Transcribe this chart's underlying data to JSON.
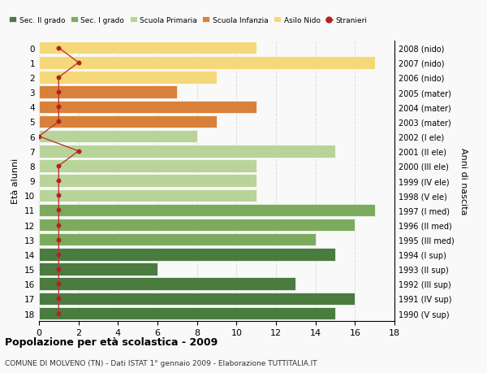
{
  "ages": [
    18,
    17,
    16,
    15,
    14,
    13,
    12,
    11,
    10,
    9,
    8,
    7,
    6,
    5,
    4,
    3,
    2,
    1,
    0
  ],
  "anni_nascita": [
    "1990 (V sup)",
    "1991 (IV sup)",
    "1992 (III sup)",
    "1993 (II sup)",
    "1994 (I sup)",
    "1995 (III med)",
    "1996 (II med)",
    "1997 (I med)",
    "1998 (V ele)",
    "1999 (IV ele)",
    "2000 (III ele)",
    "2001 (II ele)",
    "2002 (I ele)",
    "2003 (mater)",
    "2004 (mater)",
    "2005 (mater)",
    "2006 (nido)",
    "2007 (nido)",
    "2008 (nido)"
  ],
  "bar_values": [
    15,
    16,
    13,
    6,
    15,
    14,
    16,
    17,
    11,
    11,
    11,
    15,
    8,
    9,
    11,
    7,
    9,
    17,
    11
  ],
  "bar_colors": [
    "#4a7c40",
    "#4a7c40",
    "#4a7c40",
    "#4a7c40",
    "#4a7c40",
    "#7dab5e",
    "#7dab5e",
    "#7dab5e",
    "#b8d49a",
    "#b8d49a",
    "#b8d49a",
    "#b8d49a",
    "#b8d49a",
    "#d9813a",
    "#d9813a",
    "#d9813a",
    "#f5d87a",
    "#f5d87a",
    "#f5d87a"
  ],
  "stranieri_values": [
    1,
    1,
    1,
    1,
    1,
    1,
    1,
    1,
    1,
    1,
    1,
    2,
    0,
    1,
    1,
    1,
    1,
    2,
    1
  ],
  "legend_labels": [
    "Sec. II grado",
    "Sec. I grado",
    "Scuola Primaria",
    "Scuola Infanzia",
    "Asilo Nido",
    "Stranieri"
  ],
  "legend_colors": [
    "#4a7c40",
    "#7dab5e",
    "#b8d49a",
    "#d9813a",
    "#f5d87a",
    "#b22222"
  ],
  "ylabel_left": "Età alunni",
  "ylabel_right": "Anni di nascita",
  "xlim": [
    0,
    18
  ],
  "xticks": [
    0,
    2,
    4,
    6,
    8,
    10,
    12,
    14,
    16,
    18
  ],
  "title": "Popolazione per età scolastica - 2009",
  "subtitle": "COMUNE DI MOLVENO (TN) - Dati ISTAT 1° gennaio 2009 - Elaborazione TUTTITALIA.IT",
  "bar_edgecolor": "#ffffff",
  "background_color": "#f9f9f9",
  "grid_color": "#dddddd",
  "stranieri_color": "#b22222",
  "stranieri_line_color": "#c0392b"
}
